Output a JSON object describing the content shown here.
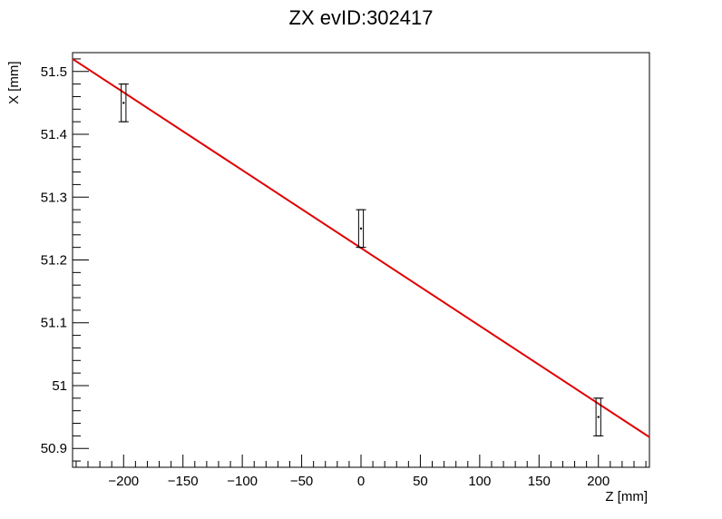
{
  "chart_data": {
    "type": "scatter",
    "title": "ZX evID:302417",
    "xlabel": "Z [mm]",
    "ylabel": "X [mm]",
    "xlim": [
      -243,
      243
    ],
    "ylim": [
      50.87,
      51.53
    ],
    "x_ticks": [
      -200,
      -150,
      -100,
      -50,
      0,
      50,
      100,
      150,
      200
    ],
    "x_tick_labels": [
      "−200",
      "−150",
      "−100",
      "−50",
      "0",
      "50",
      "100",
      "150",
      "200"
    ],
    "y_ticks": [
      50.9,
      51.0,
      51.1,
      51.2,
      51.3,
      51.4,
      51.5
    ],
    "y_tick_labels": [
      "50.9",
      "51",
      "51.1",
      "51.2",
      "51.3",
      "51.4",
      "51.5"
    ],
    "grid": false,
    "points": [
      {
        "x": -200,
        "y": 51.45,
        "xerr": 2,
        "yerr": 0.03
      },
      {
        "x": 0,
        "y": 51.25,
        "xerr": 2,
        "yerr": 0.03
      },
      {
        "x": 200,
        "y": 50.95,
        "xerr": 2,
        "yerr": 0.03
      }
    ],
    "fit_line": {
      "x": [
        -243,
        243
      ],
      "y": [
        51.52,
        50.918
      ],
      "color": "#e00000"
    },
    "marker_color": "#000000"
  }
}
